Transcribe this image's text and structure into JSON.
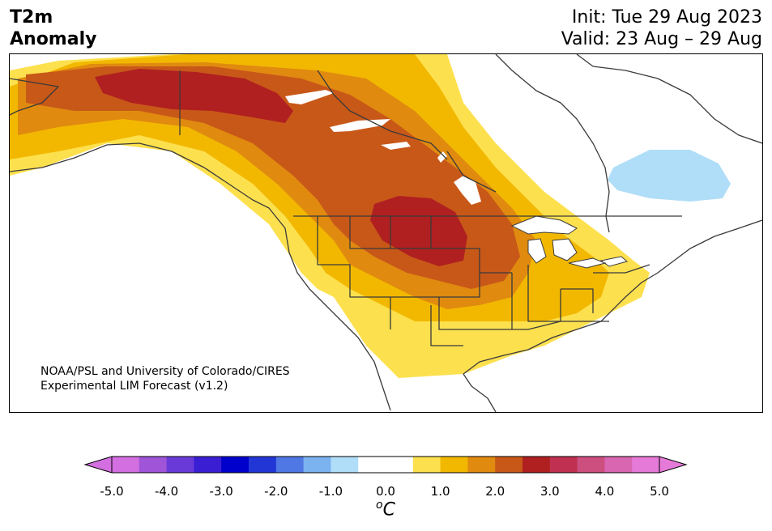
{
  "header": {
    "variable": "T2m",
    "subtitle": "Anomaly",
    "init": "Init: Tue 29 Aug 2023",
    "valid": "Valid: 23 Aug – 29 Aug"
  },
  "credit": {
    "line1": "NOAA/PSL and University of Colorado/CIRES",
    "line2": "Experimental LIM Forecast (v1.2)"
  },
  "colorbar": {
    "unit_sup": "o",
    "unit": "C",
    "ticks": [
      "-5.0",
      "-4.0",
      "-3.0",
      "-2.0",
      "-1.0",
      "0.0",
      "1.0",
      "2.0",
      "3.0",
      "4.0",
      "5.0"
    ],
    "colors": [
      "#d36fe0",
      "#a054d8",
      "#6a3ad8",
      "#3a1ed4",
      "#0000cc",
      "#2236d6",
      "#4f78e4",
      "#7bb2f0",
      "#b0def8",
      "#ffffff",
      "#ffffff",
      "#fde04e",
      "#f2b800",
      "#e08a10",
      "#c85818",
      "#b02020",
      "#c03050",
      "#cc4f80",
      "#d866b0",
      "#e67ad8"
    ],
    "extend_min_color": "#d36fe0",
    "extend_max_color": "#e67ad8"
  },
  "map_colors": {
    "land_outline": "#3a3a3a",
    "anomaly_1": "#fde04e",
    "anomaly_1_5": "#f2b800",
    "anomaly_2": "#e08a10",
    "anomaly_2_5": "#c85818",
    "anomaly_3": "#b02020",
    "anomaly_neg_1": "#b0def8"
  }
}
